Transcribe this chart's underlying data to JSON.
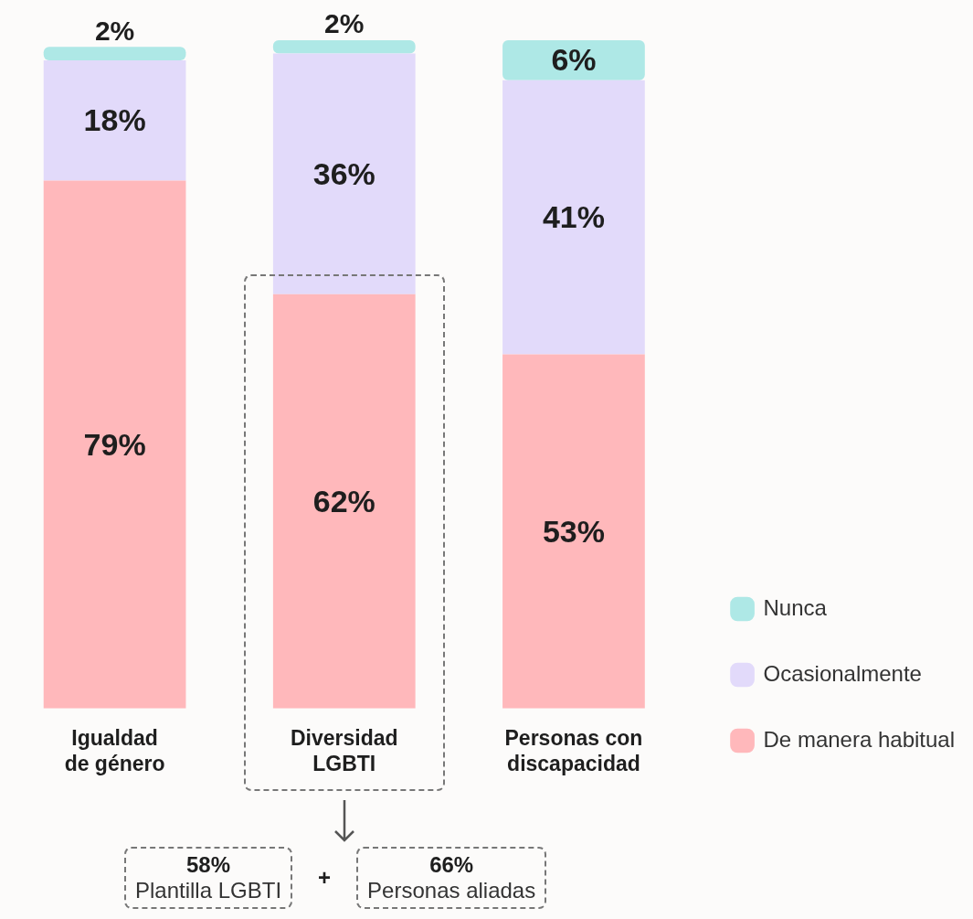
{
  "chart_data": {
    "type": "bar",
    "stacked": true,
    "categories": [
      "Igualdad de género",
      "Diversidad LGBTI",
      "Personas con discapacidad"
    ],
    "series": [
      {
        "name": "De manera habitual",
        "color": "#ffb8bb",
        "values": [
          79,
          62,
          53
        ],
        "value_labels": [
          "79%",
          "62%",
          "53%"
        ]
      },
      {
        "name": "Ocasionalmente",
        "color": "#e2dafa",
        "values": [
          18,
          36,
          41
        ],
        "value_labels": [
          "18%",
          "36%",
          "41%"
        ]
      },
      {
        "name": "Nunca",
        "color": "#aee8e6",
        "values": [
          2,
          2,
          6
        ],
        "value_labels": [
          "2%",
          "2%",
          "6%"
        ]
      }
    ],
    "legend": "right",
    "tick_labels": "x",
    "grid": false,
    "annotations": [
      "58% Plantilla LGBTI",
      "+",
      "66% Personas aliadas"
    ]
  }
}
